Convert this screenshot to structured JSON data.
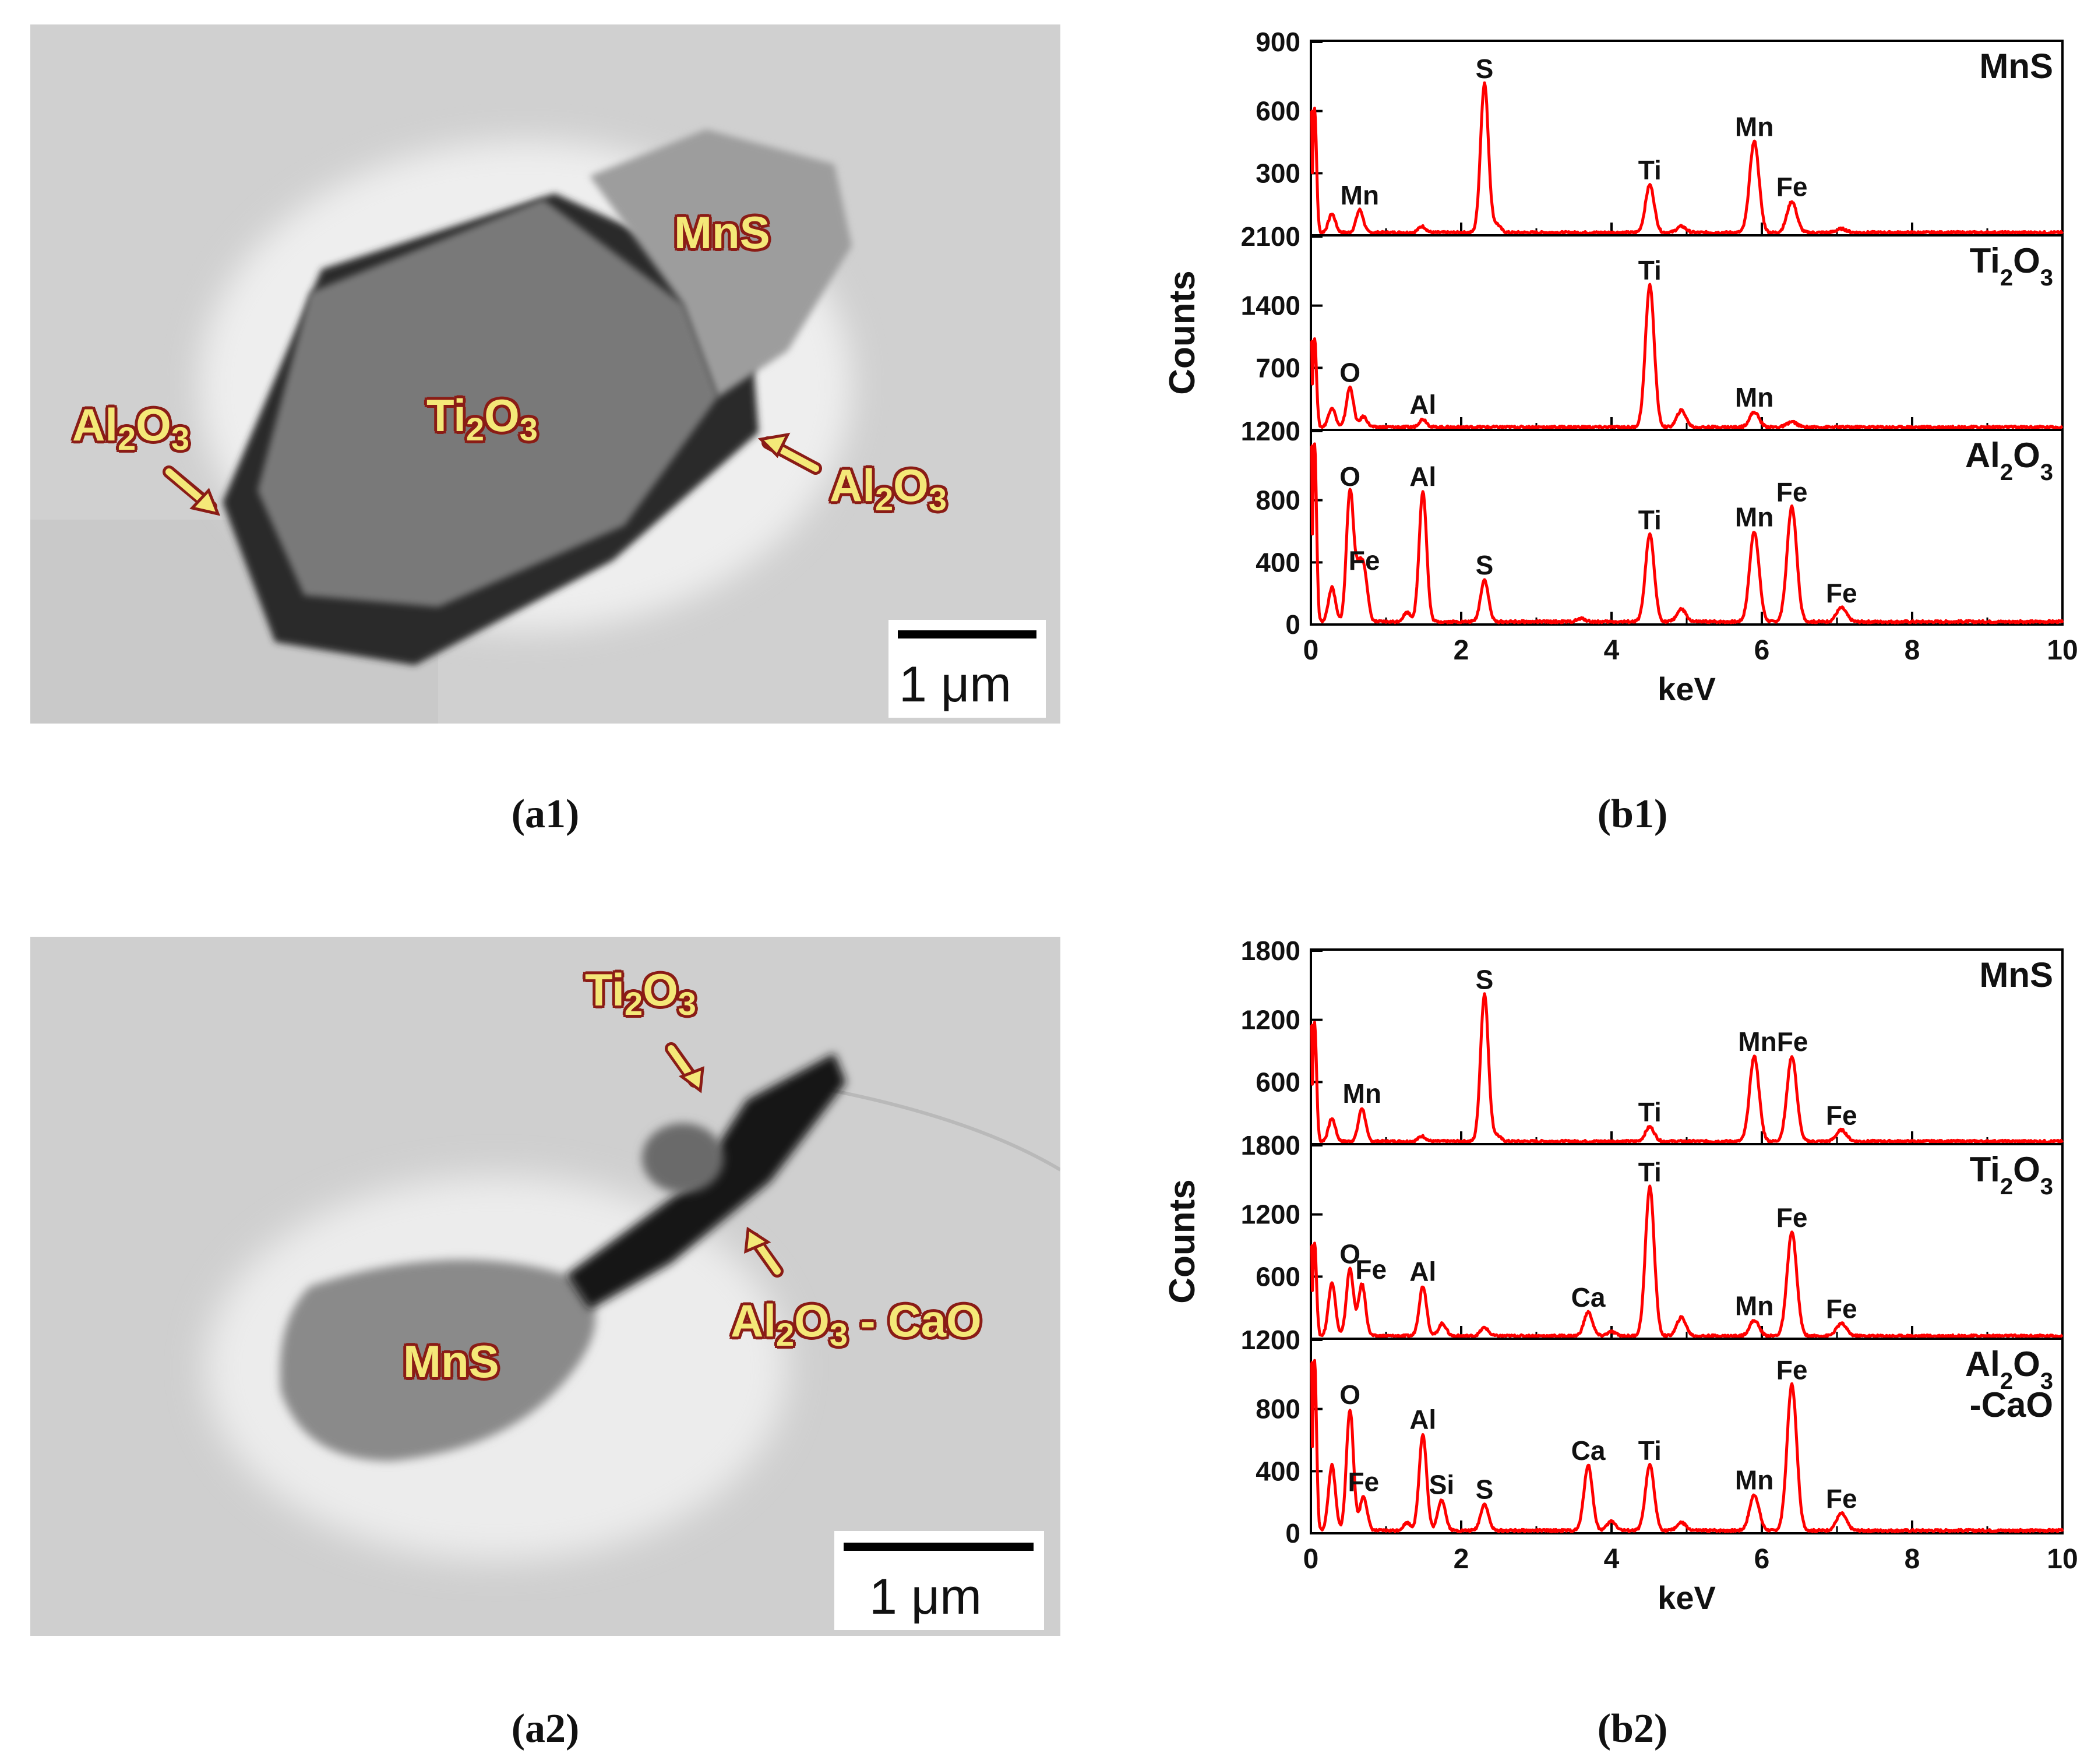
{
  "colors": {
    "spectrum": "#ff0000",
    "label_fill": "#f4e878",
    "label_stroke": "#8a1c16"
  },
  "panels": {
    "a1": {
      "caption": "(a1)",
      "labels": {
        "mns": "MnS",
        "ti2o3_main": "Ti",
        "ti2o3_sub1": "2",
        "ti2o3_o": "O",
        "ti2o3_sub2": "3",
        "al_left": "Al",
        "al_left_sub1": "2",
        "al_left_o": "O",
        "al_left_sub2": "3",
        "al_right": "Al",
        "al_right_sub1": "2",
        "al_right_o": "O",
        "al_right_sub2": "3"
      },
      "scale_bar": "1 μm"
    },
    "a2": {
      "caption": "(a2)",
      "labels": {
        "mns": "MnS",
        "ti": "Ti",
        "ti_sub1": "2",
        "ti_o": "O",
        "ti_sub2": "3",
        "al": "Al",
        "al_sub1": "2",
        "al_o": "O",
        "al_sub2": "3",
        "al_rest": " - CaO"
      },
      "scale_bar": "1 μm"
    },
    "b1": {
      "caption": "(b1)"
    },
    "b2": {
      "caption": "(b2)"
    }
  },
  "chart_data": [
    {
      "id": "b1",
      "type": "line",
      "xlabel": "keV",
      "ylabel": "Counts",
      "xlim": [
        0,
        10
      ],
      "x_ticks": [
        0,
        2,
        4,
        6,
        8,
        10
      ],
      "subplots": [
        {
          "title_parts": [
            "MnS"
          ],
          "ylim": [
            0,
            900
          ],
          "y_tick_labels": [
            "900",
            "600",
            "300"
          ],
          "y_tick_values": [
            900,
            600,
            300
          ],
          "spectrum": [
            [
              0.05,
              600
            ],
            [
              0.28,
              90
            ],
            [
              0.65,
              110
            ],
            [
              1.48,
              30
            ],
            [
              2.31,
              720
            ],
            [
              2.47,
              40
            ],
            [
              4.51,
              230
            ],
            [
              4.93,
              30
            ],
            [
              5.9,
              440
            ],
            [
              6.4,
              150
            ],
            [
              7.06,
              18
            ]
          ],
          "peak_labels": [
            {
              "text": "S",
              "x": 2.31,
              "y": 720
            },
            {
              "text": "Mn",
              "x": 0.65,
              "y": 110
            },
            {
              "text": "Ti",
              "x": 4.51,
              "y": 230
            },
            {
              "text": "Mn",
              "x": 5.9,
              "y": 440
            },
            {
              "text": "Fe",
              "x": 6.4,
              "y": 150
            }
          ]
        },
        {
          "title_parts": [
            "Ti",
            "2",
            "O",
            "3"
          ],
          "ylim": [
            0,
            2100
          ],
          "y_tick_labels": [
            "2100",
            "1400",
            "700"
          ],
          "y_tick_values": [
            2100,
            1400,
            700
          ],
          "spectrum": [
            [
              0.05,
              1000
            ],
            [
              0.28,
              220
            ],
            [
              0.52,
              450
            ],
            [
              0.7,
              120
            ],
            [
              1.49,
              90
            ],
            [
              4.51,
              1600
            ],
            [
              4.93,
              190
            ],
            [
              5.9,
              170
            ],
            [
              6.4,
              60
            ]
          ],
          "peak_labels": [
            {
              "text": "Ti",
              "x": 4.51,
              "y": 1600
            },
            {
              "text": "O",
              "x": 0.52,
              "y": 450
            },
            {
              "text": "Al",
              "x": 1.49,
              "y": 90
            },
            {
              "text": "Mn",
              "x": 5.9,
              "y": 170
            }
          ]
        },
        {
          "title_parts": [
            "Al",
            "2",
            "O",
            "3"
          ],
          "ylim": [
            0,
            1200
          ],
          "y_tick_labels": [
            "1200",
            "800",
            "400",
            "0"
          ],
          "y_tick_values": [
            1200,
            800,
            400,
            0
          ],
          "spectrum": [
            [
              0.05,
              1150
            ],
            [
              0.28,
              220
            ],
            [
              0.52,
              840
            ],
            [
              0.63,
              280
            ],
            [
              0.71,
              300
            ],
            [
              1.28,
              60
            ],
            [
              1.49,
              840
            ],
            [
              2.31,
              270
            ],
            [
              3.6,
              20
            ],
            [
              4.51,
              560
            ],
            [
              4.93,
              80
            ],
            [
              5.9,
              580
            ],
            [
              6.4,
              740
            ],
            [
              7.06,
              90
            ]
          ],
          "peak_labels": [
            {
              "text": "O",
              "x": 0.52,
              "y": 840
            },
            {
              "text": "Al",
              "x": 1.49,
              "y": 840
            },
            {
              "text": "Fe",
              "x": 0.71,
              "y": 300
            },
            {
              "text": "S",
              "x": 2.31,
              "y": 270
            },
            {
              "text": "Ti",
              "x": 4.51,
              "y": 560
            },
            {
              "text": "Mn",
              "x": 5.9,
              "y": 580
            },
            {
              "text": "Fe",
              "x": 6.4,
              "y": 740
            },
            {
              "text": "Fe",
              "x": 7.06,
              "y": 90
            }
          ]
        }
      ]
    },
    {
      "id": "b2",
      "type": "line",
      "xlabel": "keV",
      "ylabel": "Counts",
      "xlim": [
        0,
        10
      ],
      "x_ticks": [
        0,
        2,
        4,
        6,
        8,
        10
      ],
      "subplots": [
        {
          "title_parts": [
            "MnS"
          ],
          "ylim": [
            0,
            1800
          ],
          "y_tick_labels": [
            "1800",
            "1200",
            "600"
          ],
          "y_tick_values": [
            1800,
            1200,
            600
          ],
          "spectrum": [
            [
              0.05,
              1150
            ],
            [
              0.28,
              220
            ],
            [
              0.68,
              320
            ],
            [
              1.48,
              50
            ],
            [
              2.31,
              1420
            ],
            [
              2.47,
              60
            ],
            [
              4.51,
              140
            ],
            [
              5.9,
              820
            ],
            [
              6.4,
              820
            ],
            [
              7.06,
              110
            ]
          ],
          "peak_labels": [
            {
              "text": "S",
              "x": 2.31,
              "y": 1420
            },
            {
              "text": "Mn",
              "x": 0.68,
              "y": 320
            },
            {
              "text": "Ti",
              "x": 4.51,
              "y": 140
            },
            {
              "text": "MnFe",
              "x": 6.15,
              "y": 820
            },
            {
              "text": "Fe",
              "x": 7.06,
              "y": 110
            }
          ]
        },
        {
          "title_parts": [
            "Ti",
            "2",
            "O",
            "3"
          ],
          "ylim": [
            0,
            1800
          ],
          "y_tick_labels": [
            "1800",
            "1200",
            "600"
          ],
          "y_tick_values": [
            1800,
            1200,
            600
          ],
          "spectrum": [
            [
              0.05,
              900
            ],
            [
              0.28,
              520
            ],
            [
              0.52,
              650
            ],
            [
              0.68,
              500
            ],
            [
              1.49,
              480
            ],
            [
              1.75,
              120
            ],
            [
              2.31,
              80
            ],
            [
              3.69,
              230
            ],
            [
              4.0,
              40
            ],
            [
              4.51,
              1440
            ],
            [
              4.93,
              180
            ],
            [
              5.9,
              150
            ],
            [
              6.4,
              1000
            ],
            [
              7.06,
              120
            ]
          ],
          "peak_labels": [
            {
              "text": "Ti",
              "x": 4.51,
              "y": 1440
            },
            {
              "text": "O",
              "x": 0.52,
              "y": 650
            },
            {
              "text": "Fe",
              "x": 0.8,
              "y": 500
            },
            {
              "text": "Al",
              "x": 1.49,
              "y": 480
            },
            {
              "text": "Ca",
              "x": 3.69,
              "y": 230
            },
            {
              "text": "Mn",
              "x": 5.9,
              "y": 150
            },
            {
              "text": "Fe",
              "x": 6.4,
              "y": 1000
            },
            {
              "text": "Fe",
              "x": 7.06,
              "y": 120
            }
          ]
        },
        {
          "title_parts": [
            "Al",
            "2",
            "O",
            "3"
          ],
          "title_line2": "-CaO",
          "ylim": [
            0,
            1200
          ],
          "y_tick_labels": [
            "1200",
            "800",
            "400",
            "0"
          ],
          "y_tick_values": [
            1200,
            800,
            400,
            0
          ],
          "spectrum": [
            [
              0.05,
              1100
            ],
            [
              0.28,
              420
            ],
            [
              0.52,
              780
            ],
            [
              0.7,
              220
            ],
            [
              1.28,
              50
            ],
            [
              1.49,
              620
            ],
            [
              1.74,
              200
            ],
            [
              2.31,
              170
            ],
            [
              3.69,
              420
            ],
            [
              4.0,
              60
            ],
            [
              4.51,
              420
            ],
            [
              4.93,
              50
            ],
            [
              5.9,
              230
            ],
            [
              6.4,
              940
            ],
            [
              7.06,
              110
            ]
          ],
          "peak_labels": [
            {
              "text": "O",
              "x": 0.52,
              "y": 780
            },
            {
              "text": "Fe",
              "x": 0.7,
              "y": 220
            },
            {
              "text": "Al",
              "x": 1.49,
              "y": 620
            },
            {
              "text": "Si",
              "x": 1.74,
              "y": 200
            },
            {
              "text": "S",
              "x": 2.31,
              "y": 170
            },
            {
              "text": "Ca",
              "x": 3.69,
              "y": 420
            },
            {
              "text": "Ti",
              "x": 4.51,
              "y": 420
            },
            {
              "text": "Mn",
              "x": 5.9,
              "y": 230
            },
            {
              "text": "Fe",
              "x": 6.4,
              "y": 940
            },
            {
              "text": "Fe",
              "x": 7.06,
              "y": 110
            }
          ]
        }
      ]
    }
  ]
}
